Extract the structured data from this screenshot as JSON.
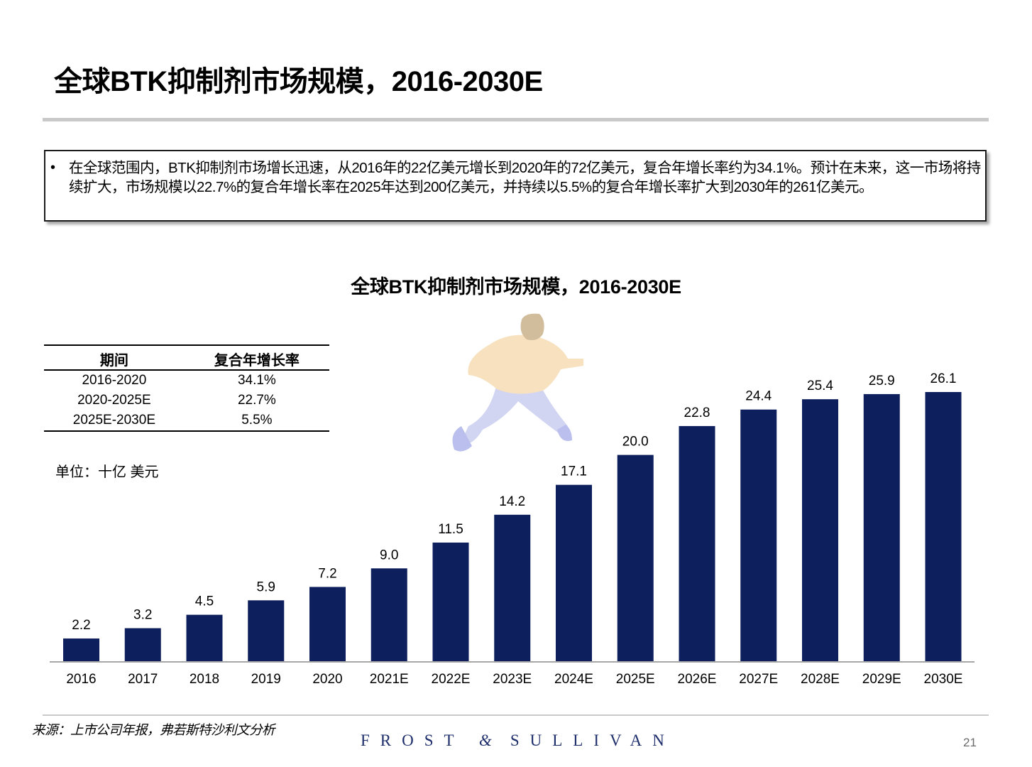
{
  "page": {
    "title": "全球BTK抑制剂市场规模，2016-2030E",
    "summary_bullet": "•",
    "summary": "在全球范围内，BTK抑制剂市场增长迅速，从2016年的22亿美元增长到2020年的72亿美元，复合年增长率约为34.1%。预计在未来，这一市场将持续扩大，市场规模以22.7%的复合年增长率在2025年达到200亿美元，并持续以5.5%的复合年增长率扩大到2030年的261亿美元。",
    "unit_label": "单位：十亿 美元",
    "source": "来源：上市公司年报，弗若斯特沙利文分析",
    "brand": {
      "left": "FROST",
      "amp": "&",
      "right": "SULLIVAN"
    },
    "page_number": "21"
  },
  "cagr_table": {
    "headers": [
      "期间",
      "复合年增长率"
    ],
    "rows": [
      [
        "2016-2020",
        "34.1%"
      ],
      [
        "2020-2025E",
        "22.7%"
      ],
      [
        "2025E-2030E",
        "5.5%"
      ]
    ]
  },
  "chart_data": {
    "type": "bar",
    "title": "全球BTK抑制剂市场规模，2016-2030E",
    "xlabel": "",
    "ylabel": "",
    "categories": [
      "2016",
      "2017",
      "2018",
      "2019",
      "2020",
      "2021E",
      "2022E",
      "2023E",
      "2024E",
      "2025E",
      "2026E",
      "2027E",
      "2028E",
      "2029E",
      "2030E"
    ],
    "values": [
      2.2,
      3.2,
      4.5,
      5.9,
      7.2,
      9.0,
      11.5,
      14.2,
      17.1,
      20.0,
      22.8,
      24.4,
      25.4,
      25.9,
      26.1
    ],
    "value_labels": [
      "2.2",
      "3.2",
      "4.5",
      "5.9",
      "7.2",
      "9.0",
      "11.5",
      "14.2",
      "17.1",
      "20.0",
      "22.8",
      "24.4",
      "25.4",
      "25.9",
      "26.1"
    ],
    "ylim": [
      0,
      26.1
    ],
    "grid": false,
    "bar_color": "#0d1f5c",
    "axis_color": "#a6a6a6"
  },
  "decor": {
    "figure_icon": "running-person-illustration",
    "skin_color": "#c9b28a",
    "shirt_color": "#f6dcb5",
    "pants_color": "#c9cef0",
    "shoe_color": "#aeb5ea"
  }
}
